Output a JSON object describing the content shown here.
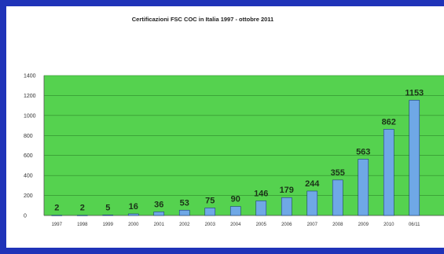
{
  "chart_data": {
    "type": "bar",
    "title": "Certificazioni FSC COC in Italia 1997 - ottobre 2011",
    "xlabel": "",
    "ylabel": "",
    "categories": [
      "1997",
      "1998",
      "1999",
      "2000",
      "2001",
      "2002",
      "2003",
      "2004",
      "2005",
      "2006",
      "2007",
      "2008",
      "2009",
      "2010",
      "06/11"
    ],
    "values": [
      2,
      2,
      5,
      16,
      36,
      53,
      75,
      90,
      146,
      179,
      244,
      355,
      563,
      862,
      1153
    ],
    "data_labels": [
      "2",
      "2",
      "5",
      "16",
      "36",
      "53",
      "75",
      "90",
      "146",
      "179",
      "244",
      "355",
      "563",
      "862",
      "1153"
    ],
    "ylim": [
      0,
      1400
    ],
    "yticks": [
      "0",
      "200",
      "400",
      "600",
      "800",
      "1000",
      "1200",
      "1400"
    ],
    "grid": true,
    "legend": "none",
    "colors": {
      "plot_background": "#55d24f",
      "bar_fill": "#6fa8e6",
      "bar_stroke": "#1f3f7a",
      "outer_border": "#1f33b8"
    }
  }
}
